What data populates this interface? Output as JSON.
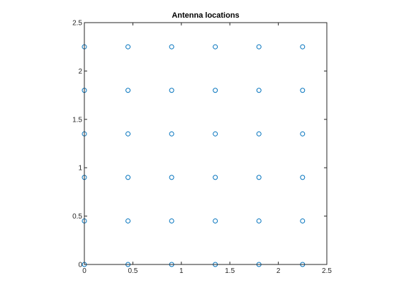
{
  "chart_data": {
    "type": "scatter",
    "title": "Antenna locations",
    "xlabel": "",
    "ylabel": "",
    "xlim": [
      0,
      2.5
    ],
    "ylim": [
      0,
      2.5
    ],
    "xticks": [
      "0",
      "0.5",
      "1",
      "1.5",
      "2",
      "2.5"
    ],
    "yticks": [
      "0",
      "0.5",
      "1",
      "1.5",
      "2",
      "2.5"
    ],
    "grid": false,
    "marker": "circle-open",
    "marker_color": "#0072BD",
    "series": [
      {
        "x": [
          0,
          0.45,
          0.9,
          1.35,
          1.8,
          2.25,
          0,
          0.45,
          0.9,
          1.35,
          1.8,
          2.25,
          0,
          0.45,
          0.9,
          1.35,
          1.8,
          2.25,
          0,
          0.45,
          0.9,
          1.35,
          1.8,
          2.25,
          0,
          0.45,
          0.9,
          1.35,
          1.8,
          2.25,
          0,
          0.45,
          0.9,
          1.35,
          1.8,
          2.25
        ],
        "y": [
          0,
          0,
          0,
          0,
          0,
          0,
          0.45,
          0.45,
          0.45,
          0.45,
          0.45,
          0.45,
          0.9,
          0.9,
          0.9,
          0.9,
          0.9,
          0.9,
          1.35,
          1.35,
          1.35,
          1.35,
          1.35,
          1.35,
          1.8,
          1.8,
          1.8,
          1.8,
          1.8,
          1.8,
          2.25,
          2.25,
          2.25,
          2.25,
          2.25,
          2.25
        ]
      }
    ]
  }
}
